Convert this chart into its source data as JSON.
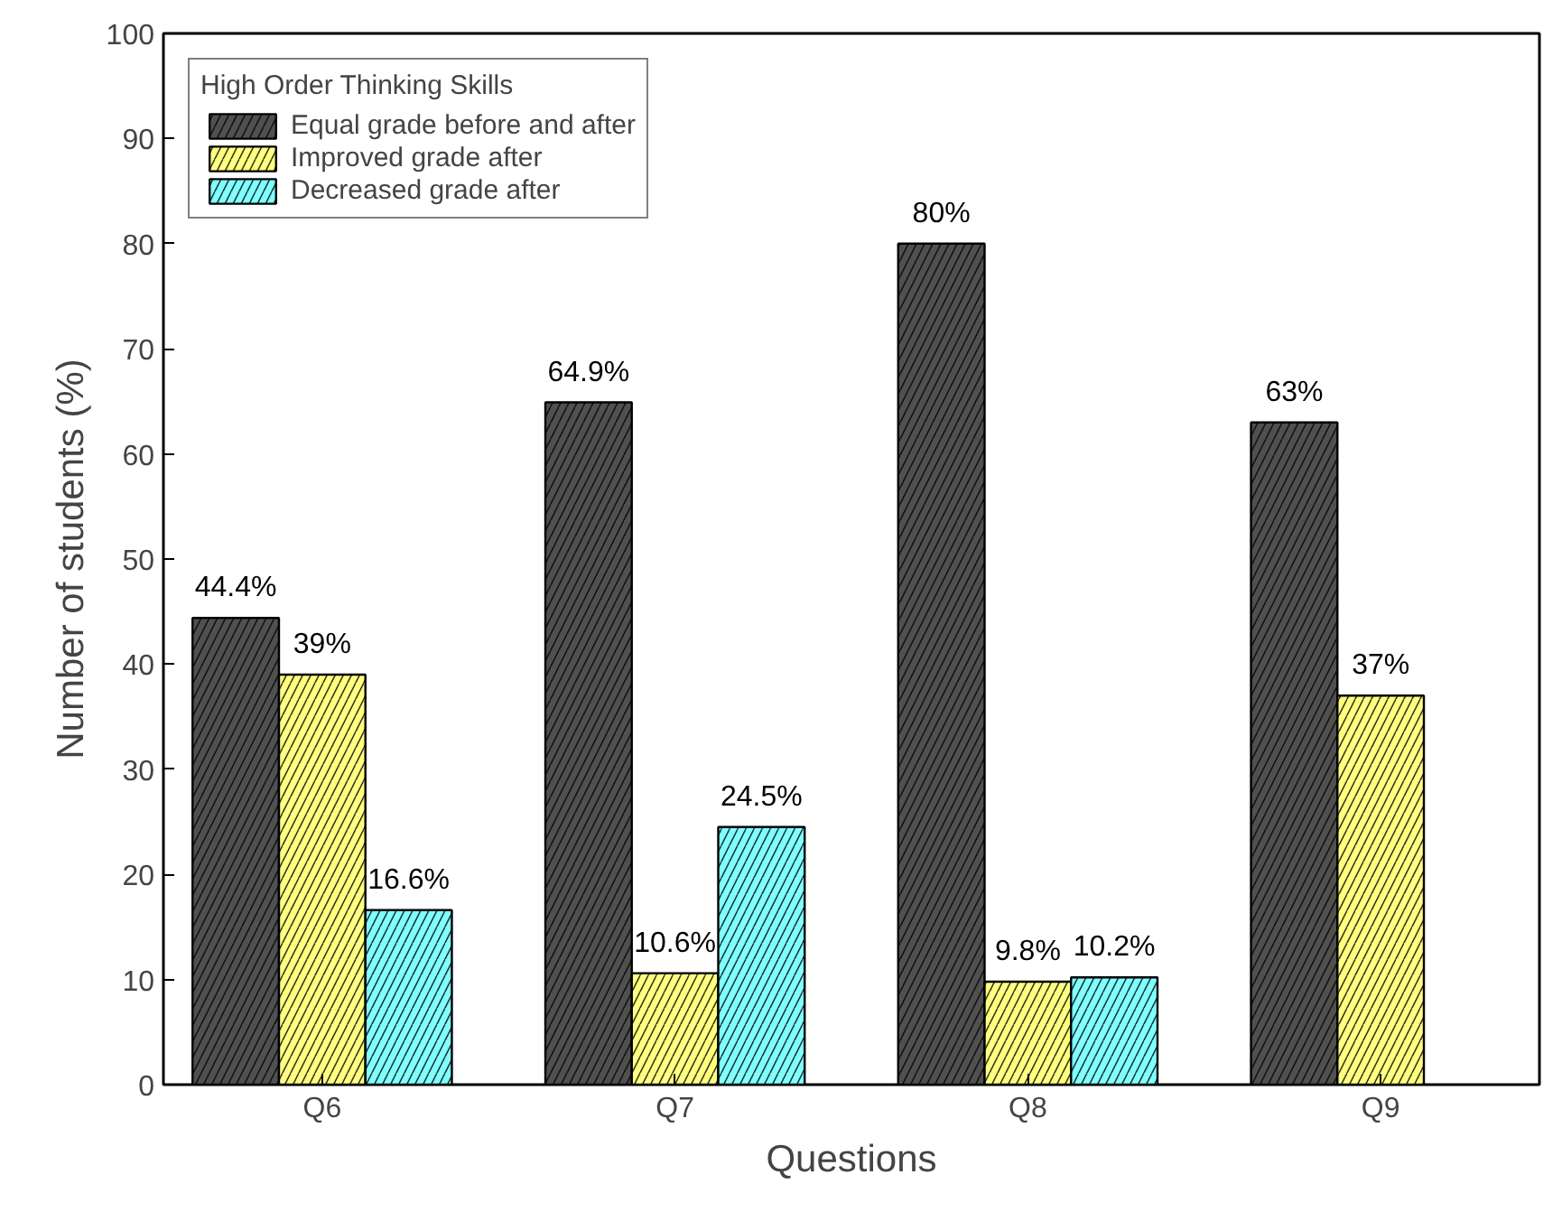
{
  "chart_data": {
    "type": "bar",
    "xlabel": "Questions",
    "ylabel": "Number of students (%)",
    "legend_title": "High Order Thinking Skills",
    "categories": [
      "Q6",
      "Q7",
      "Q8",
      "Q9"
    ],
    "series": [
      {
        "name": "Equal grade before and after",
        "color": "#505050",
        "values": [
          44.4,
          64.9,
          80,
          63
        ],
        "value_labels": [
          "44.4%",
          "64.9%",
          "80%",
          "63%"
        ]
      },
      {
        "name": "Improved grade after",
        "color": "#ffff80",
        "values": [
          39,
          10.6,
          9.8,
          37
        ],
        "value_labels": [
          "39%",
          "10.6%",
          "9.8%",
          "37%"
        ]
      },
      {
        "name": "Decreased grade after",
        "color": "#80ffff",
        "values": [
          16.6,
          24.5,
          10.2,
          null
        ],
        "value_labels": [
          "16.6%",
          "24.5%",
          "10.2%",
          null
        ]
      }
    ],
    "ylim": [
      0,
      100
    ],
    "yticks": [
      0,
      10,
      20,
      30,
      40,
      50,
      60,
      70,
      80,
      90,
      100
    ],
    "grid": false,
    "legend": "top left"
  }
}
